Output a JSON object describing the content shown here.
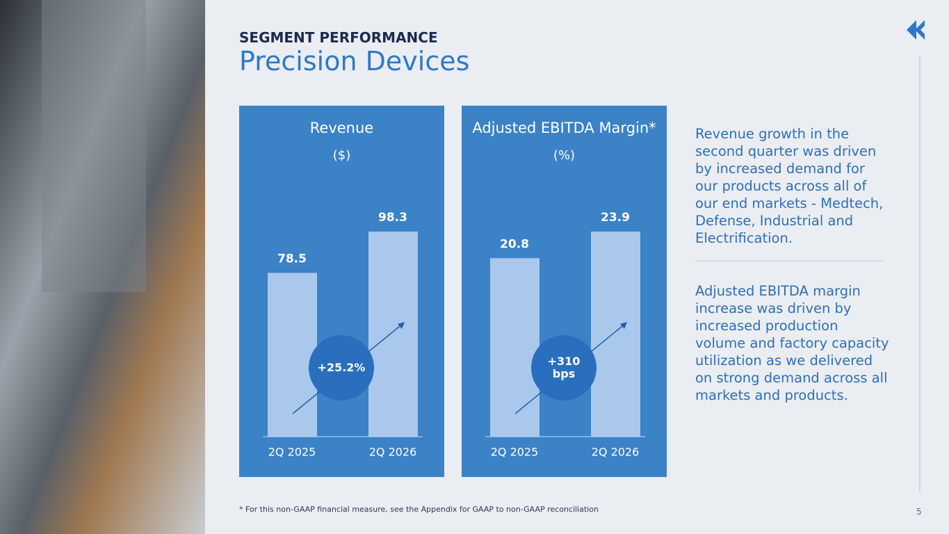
{
  "header": {
    "kicker": "SEGMENT PERFORMANCE",
    "title": "Precision Devices"
  },
  "chart_data": [
    {
      "type": "bar",
      "title": "Revenue",
      "subtitle": "($)",
      "categories": [
        "2Q 2025",
        "2Q 2026"
      ],
      "values": [
        78.5,
        98.3
      ],
      "color": "#a9c8ec",
      "annotation": "+25.2%"
    },
    {
      "type": "bar",
      "title": "Adjusted EBITDA Margin*",
      "subtitle": "(%)",
      "categories": [
        "2Q 2025",
        "2Q 2026"
      ],
      "values": [
        20.8,
        23.9
      ],
      "color": "#a9c8ec",
      "annotation": "+310 bps"
    }
  ],
  "commentary": [
    "Revenue growth in the second quarter was driven by increased demand for our products across all of our end markets - Medtech, Defense, Industrial and Electrification.",
    "Adjusted EBITDA margin increase was driven by increased production volume and  factory capacity utilization as we delivered on strong demand across all markets and products."
  ],
  "footnote": "* For this non-GAAP financial measure, see the Appendix for GAAP to non-GAAP reconciliation",
  "page_number": "5"
}
